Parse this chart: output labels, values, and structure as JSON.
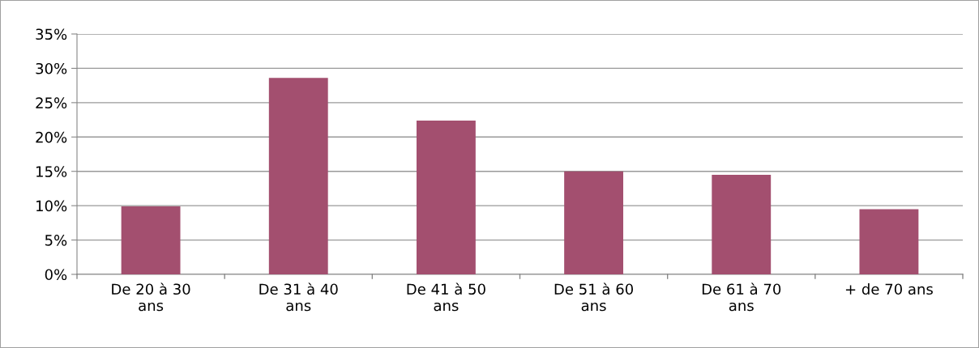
{
  "chart_data": {
    "type": "bar",
    "categories": [
      "De 20 à 30 ans",
      "De 31 à 40 ans",
      "De 41 à 50 ans",
      "De 51 à 60 ans",
      "De 61 à 70 ans",
      "+ de 70 ans"
    ],
    "values": [
      9.9,
      28.6,
      22.4,
      15.0,
      14.5,
      9.5
    ],
    "color": "#a34f6f",
    "ylim": [
      0,
      35
    ],
    "yticks": [
      {
        "value": 0,
        "label": "0%"
      },
      {
        "value": 5,
        "label": "5%"
      },
      {
        "value": 10,
        "label": "10%"
      },
      {
        "value": 15,
        "label": "15%"
      },
      {
        "value": 20,
        "label": "20%"
      },
      {
        "value": 25,
        "label": "25%"
      },
      {
        "value": 30,
        "label": "30%"
      },
      {
        "value": 35,
        "label": "35%"
      }
    ],
    "grid": "y",
    "legend": false
  }
}
